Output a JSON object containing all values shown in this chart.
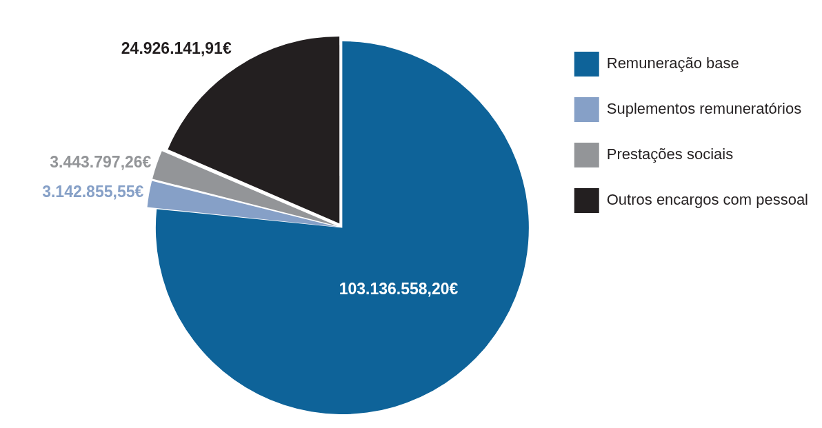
{
  "chart_data": {
    "type": "pie",
    "categories": [
      "Remuneração base",
      "Suplementos remuneratórios",
      "Prestações sociais",
      "Outros encargos com pessoal"
    ],
    "values": [
      103136558.2,
      3142855.55,
      3443797.26,
      24926141.91
    ],
    "colors": [
      "#0e6399",
      "#86a0c7",
      "#939598",
      "#231f20"
    ],
    "value_labels": [
      "103.136.558,20€",
      "3.142.855,55€",
      "3.443.797,26€",
      "24.926.141,91€"
    ],
    "legend": "right"
  }
}
